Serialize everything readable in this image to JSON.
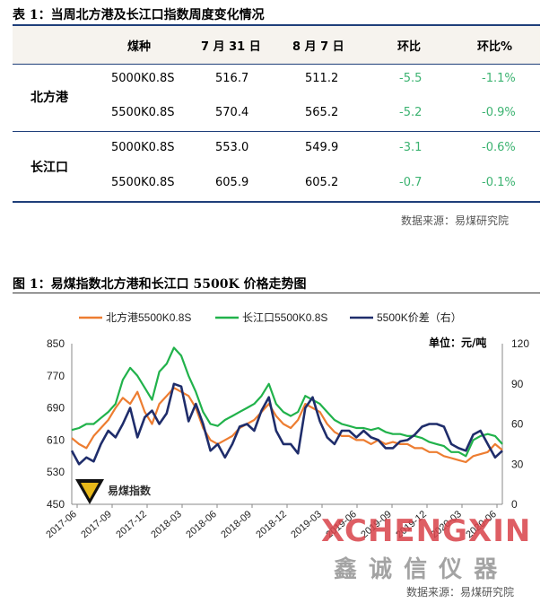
{
  "table": {
    "title": "表 1：当周北方港及长江口指数周度变化情况",
    "headers": [
      "煤种",
      "7 月 31 日",
      "8 月 7 日",
      "环比",
      "环比%"
    ],
    "groups": [
      {
        "region": "北方港",
        "rows": [
          {
            "coal": "5000K0.8S",
            "d1": "516.7",
            "d2": "511.2",
            "chg": "-5.5",
            "pct": "-1.1%"
          },
          {
            "coal": "5500K0.8S",
            "d1": "570.4",
            "d2": "565.2",
            "chg": "-5.2",
            "pct": "-0.9%"
          }
        ]
      },
      {
        "region": "长江口",
        "rows": [
          {
            "coal": "5000K0.8S",
            "d1": "553.0",
            "d2": "549.9",
            "chg": "-3.1",
            "pct": "-0.6%"
          },
          {
            "coal": "5500K0.8S",
            "d1": "605.9",
            "d2": "605.2",
            "chg": "-0.7",
            "pct": "-0.1%"
          }
        ]
      }
    ],
    "source": "数据来源：易煤研究院"
  },
  "figure": {
    "title": "图 1：易煤指数北方港和长江口 5500K 价格走势图",
    "unit": "单位：元/吨",
    "logo_text": "易煤指数",
    "source": "数据来源：易煤研究院",
    "watermark": {
      "latin": "XCHENGXIN",
      "chinese": "鑫 诚 信 仪 器"
    }
  },
  "chart_data": {
    "type": "line",
    "title": "",
    "xlabel": "",
    "ylabel_left": "",
    "ylabel_right": "",
    "ylim_left": [
      450,
      850
    ],
    "ylim_right": [
      0,
      120
    ],
    "yticks_left": [
      450,
      530,
      610,
      690,
      770,
      850
    ],
    "yticks_right": [
      0,
      30,
      60,
      90,
      120
    ],
    "x_ticks": [
      "2017-06",
      "2017-09",
      "2017-12",
      "2018-03",
      "2018-06",
      "2018-09",
      "2018-12",
      "2019-03",
      "2019-06",
      "2019-09",
      "2019-12",
      "2020-03",
      "2020-06"
    ],
    "legend_position": "top",
    "grid": false,
    "series": [
      {
        "name": "北方港5500K0.8S",
        "axis": "left",
        "color": "#ed7d31",
        "values": [
          615,
          600,
          590,
          620,
          640,
          660,
          690,
          715,
          700,
          730,
          680,
          650,
          700,
          720,
          740,
          730,
          720,
          690,
          640,
          610,
          600,
          610,
          620,
          640,
          650,
          660,
          680,
          700,
          670,
          650,
          640,
          660,
          700,
          690,
          680,
          650,
          630,
          620,
          620,
          610,
          610,
          600,
          610,
          600,
          605,
          600,
          600,
          590,
          590,
          580,
          580,
          570,
          565,
          560,
          555,
          570,
          575,
          580,
          600,
          585
        ]
      },
      {
        "name": "长江口5500K0.8S",
        "axis": "left",
        "color": "#21b24b",
        "values": [
          635,
          640,
          650,
          650,
          665,
          680,
          700,
          760,
          790,
          770,
          740,
          710,
          780,
          800,
          840,
          820,
          770,
          730,
          680,
          650,
          645,
          660,
          670,
          680,
          690,
          700,
          720,
          750,
          700,
          680,
          670,
          680,
          720,
          710,
          700,
          680,
          660,
          650,
          645,
          640,
          640,
          635,
          640,
          630,
          625,
          625,
          620,
          620,
          615,
          605,
          600,
          595,
          580,
          580,
          570,
          610,
          620,
          625,
          620,
          600
        ]
      },
      {
        "name": "5500K价差（右）",
        "axis": "right",
        "color": "#1f2d6b",
        "values": [
          40,
          30,
          35,
          32,
          45,
          55,
          50,
          60,
          72,
          50,
          65,
          70,
          60,
          68,
          90,
          88,
          62,
          75,
          60,
          40,
          45,
          35,
          45,
          58,
          60,
          55,
          70,
          80,
          55,
          45,
          45,
          38,
          72,
          80,
          62,
          50,
          45,
          55,
          55,
          50,
          55,
          50,
          48,
          42,
          42,
          47,
          48,
          52,
          58,
          60,
          60,
          58,
          45,
          42,
          40,
          52,
          55,
          45,
          35,
          40
        ]
      }
    ]
  }
}
